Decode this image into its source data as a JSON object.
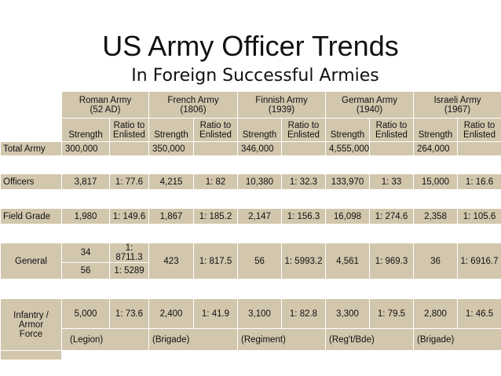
{
  "title": "US Army Officer Trends",
  "subtitle": "In Foreign Successful Armies",
  "armies": [
    {
      "name": "Roman Army",
      "period": "(52 AD)"
    },
    {
      "name": "French Army",
      "period": "(1806)"
    },
    {
      "name": "Finnish Army",
      "period": "(1939)"
    },
    {
      "name": "German Army",
      "period": "(1940)"
    },
    {
      "name": "Israeli Army",
      "period": "(1967)"
    }
  ],
  "col_strength": "Strength",
  "col_ratio": "Ratio to Enlisted",
  "rows": {
    "total": {
      "label": "Total Army",
      "values": [
        "300,000",
        "",
        "350,000",
        "",
        "346,000",
        "",
        "4,555,000",
        "",
        "264,000",
        ""
      ]
    },
    "officers": {
      "label": "Officers",
      "values": [
        "3,817",
        "1: 77.6",
        "4,215",
        "1: 82",
        "10,380",
        "1: 32.3",
        "133,970",
        "1: 33",
        "15,000",
        "1: 16.6"
      ]
    },
    "field": {
      "label": "Field Grade",
      "values": [
        "1,980",
        "1: 149.6",
        "1,867",
        "1: 185.2",
        "2,147",
        "1: 156.3",
        "16,098",
        "1: 274.6",
        "2,358",
        "1: 105.6"
      ]
    },
    "general": {
      "label": "General",
      "roman_strength_a": "34",
      "roman_ratio_a": "1: 8711.3",
      "roman_strength_b": "56",
      "roman_ratio_b": "1: 5289",
      "values": [
        "423",
        "1: 817.5",
        "56",
        "1: 5993.2",
        "4,561",
        "1: 969.3",
        "36",
        "1: 6916.7"
      ]
    },
    "infantry": {
      "label": "Infantry / Armor Force",
      "values": [
        "5,000",
        "1: 73.6",
        "2,400",
        "1: 41.9",
        "3,100",
        "1: 82.8",
        "3,300",
        "1: 79.5",
        "2,800",
        "1: 46.5"
      ],
      "units": [
        "(Legion)",
        "(Brigade)",
        "(Regiment)",
        "(Reg't/Bde)",
        "(Brigade)"
      ]
    }
  }
}
